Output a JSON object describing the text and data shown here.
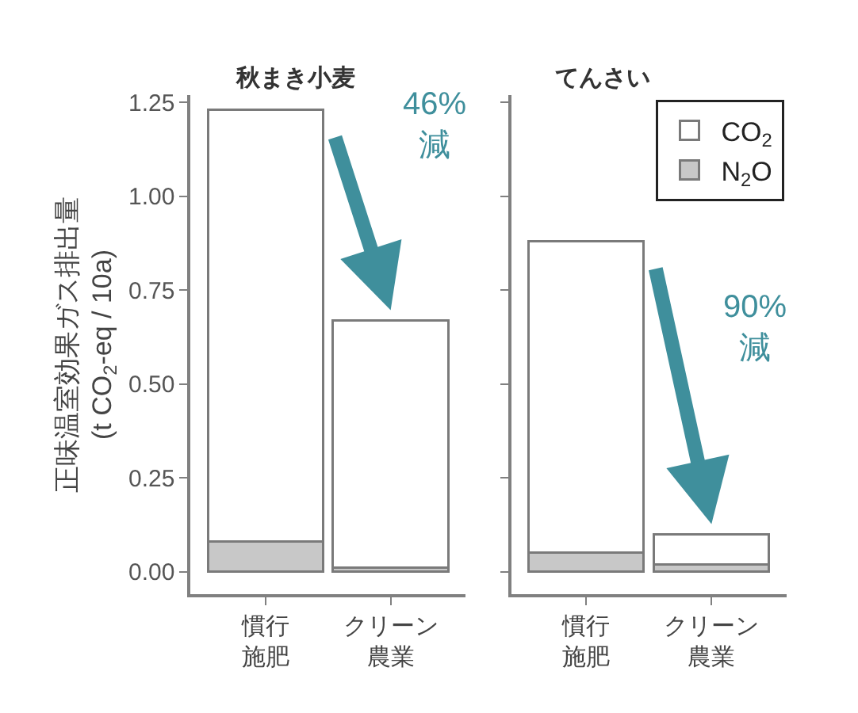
{
  "chart_data": [
    {
      "type": "bar",
      "title": "秋まき小麦",
      "ylabel": "正味温室効果ガス排出量\n(t CO$_{2}$-eq / 10a)",
      "categories": [
        "慣行施肥",
        "クリーン農業"
      ],
      "stacked": true,
      "series": [
        {
          "name": "N$_{2}$O",
          "color": "#c8c8c8",
          "values": [
            0.08,
            0.01
          ]
        },
        {
          "name": "CO$_{2}$",
          "color": "#ffffff",
          "values": [
            1.15,
            0.66
          ]
        }
      ],
      "ylim": [
        -0.06,
        1.27
      ],
      "yticks": [
        {
          "value": 0,
          "label": "0.00"
        },
        0.25,
        {
          "value": 0.5,
          "label": "0.50"
        },
        0.75,
        {
          "value": 1,
          "label": "1.00"
        },
        1.25
      ],
      "annotations": [
        "46%\n減"
      ],
      "legend": "top right"
    },
    {
      "type": "bar",
      "title": "てんさい",
      "categories": [
        "慣行施肥",
        "クリーン農業"
      ],
      "stacked": true,
      "series": [
        {
          "name": "N$_{2}$O",
          "color": "#c8c8c8",
          "values": [
            0.05,
            0.02
          ]
        },
        {
          "name": "CO$_{2}$",
          "color": "#ffffff",
          "values": [
            0.83,
            0.08
          ]
        }
      ],
      "ylim": [
        -0.06,
        1.27
      ],
      "yticks": [
        {
          "value": 0,
          "label": null
        },
        {
          "value": 0.25,
          "label": null
        },
        {
          "value": 0.5,
          "label": null
        },
        {
          "value": 0.75,
          "label": null
        },
        {
          "value": 1,
          "label": null
        },
        {
          "value": 1.25,
          "label": null
        }
      ],
      "tick_labels": "x",
      "annotations": [
        "90%\n減"
      ],
      "legend": "top right"
    }
  ]
}
